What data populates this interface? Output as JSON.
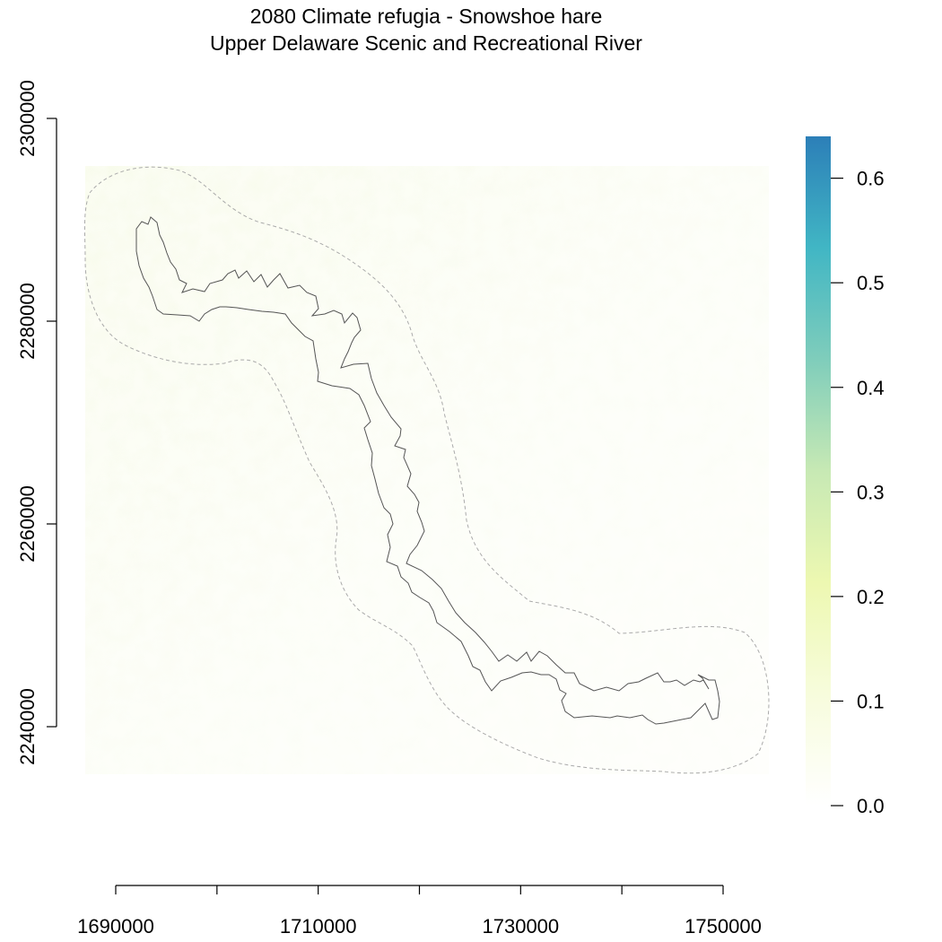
{
  "title": {
    "line1": "2080 Climate refugia - Snowshoe hare",
    "line2": "Upper Delaware Scenic and Recreational River"
  },
  "x_axis": {
    "range": [
      1685000,
      1753000
    ],
    "ticks": [
      {
        "value": 1690000,
        "label": "1690000"
      },
      {
        "value": 1700000,
        "label": ""
      },
      {
        "value": 1710000,
        "label": "1710000"
      },
      {
        "value": 1720000,
        "label": ""
      },
      {
        "value": 1730000,
        "label": "1730000"
      },
      {
        "value": 1740000,
        "label": ""
      },
      {
        "value": 1750000,
        "label": "1750000"
      }
    ]
  },
  "y_axis": {
    "range": [
      2232000,
      2302000
    ],
    "ticks": [
      {
        "value": 2240000,
        "label": "2240000"
      },
      {
        "value": 2260000,
        "label": "2260000"
      },
      {
        "value": 2280000,
        "label": "2280000"
      },
      {
        "value": 2300000,
        "label": "2300000"
      }
    ]
  },
  "legend": {
    "placement": "right",
    "min": 0.0,
    "max": 0.64,
    "colors": [
      "#ffffff",
      "#f7fcdc",
      "#edf8b1",
      "#c7e9b4",
      "#7fcdbb",
      "#41b6c4",
      "#2c7fb8"
    ],
    "ticks": [
      {
        "value": 0.0,
        "label": "0.0"
      },
      {
        "value": 0.1,
        "label": "0.1"
      },
      {
        "value": 0.2,
        "label": "0.2"
      },
      {
        "value": 0.3,
        "label": "0.3"
      },
      {
        "value": 0.4,
        "label": "0.4"
      },
      {
        "value": 0.5,
        "label": "0.5"
      },
      {
        "value": 0.6,
        "label": "0.6"
      }
    ]
  },
  "raster": {
    "typical_value_range": [
      0.0,
      0.06
    ],
    "tint_color": "#f3f8dc"
  },
  "layers": {
    "park_boundary": {
      "style": "solid",
      "color": "#555555"
    },
    "buffer_boundary": {
      "style": "dashed",
      "color": "#aaaaaa"
    }
  },
  "colors": {
    "background": "#ffffff",
    "axis": "#000000"
  }
}
